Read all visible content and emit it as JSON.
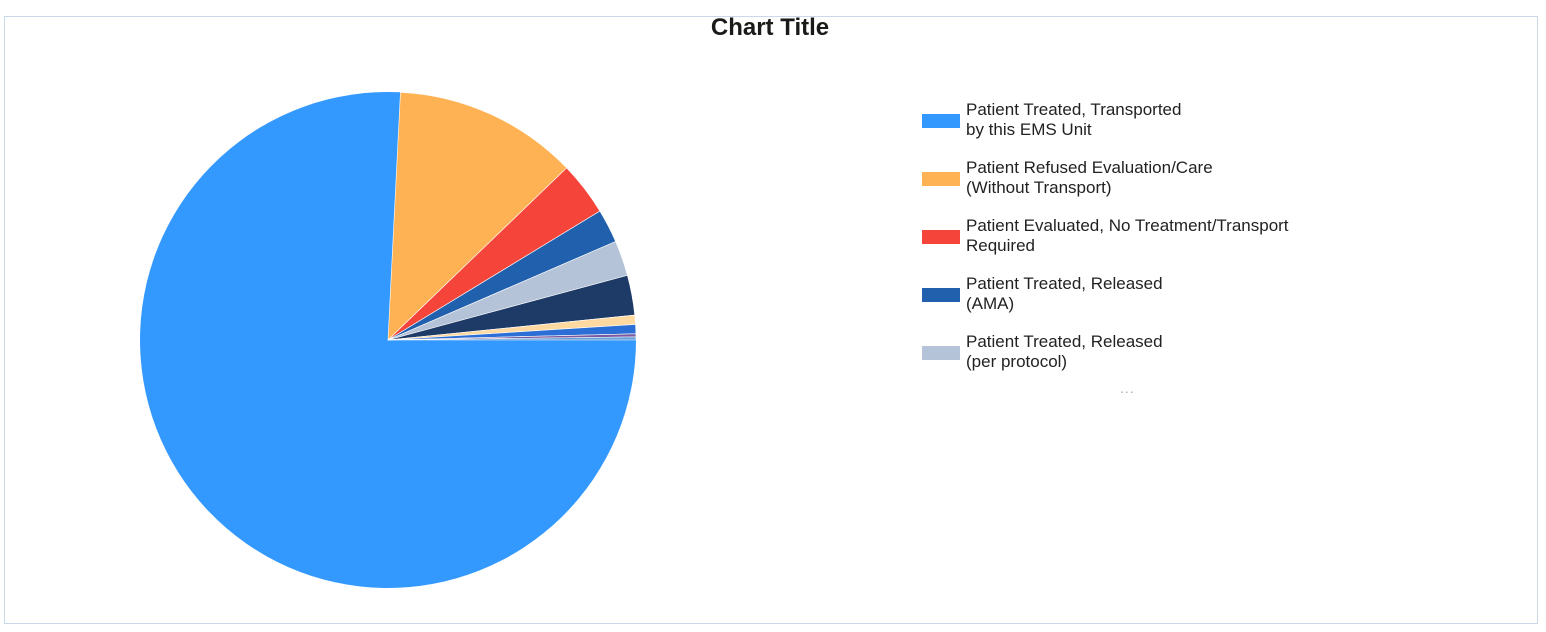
{
  "chart_data": {
    "type": "pie",
    "title": "Chart Title",
    "legend_position": "right",
    "more_indicator": "...",
    "slices": [
      {
        "label": "Patient Treated, Transported by this EMS Unit",
        "value": 75.8,
        "color": "#3399ff",
        "legend_lines": [
          "Patient Treated, Transported",
          "by this EMS Unit"
        ]
      },
      {
        "label": "Patient Refused Evaluation/Care (Without Transport)",
        "value": 12.0,
        "color": "#ffb254",
        "legend_lines": [
          "Patient Refused Evaluation/Care",
          "(Without Transport)"
        ]
      },
      {
        "label": "Patient Evaluated, No Treatment/Transport Required",
        "value": 3.5,
        "color": "#f5453a",
        "legend_lines": [
          "Patient Evaluated, No Treatment/Transport",
          "Required"
        ]
      },
      {
        "label": "Patient Treated, Released (AMA)",
        "value": 2.2,
        "color": "#2160ad",
        "legend_lines": [
          "Patient Treated, Released",
          "(AMA)"
        ]
      },
      {
        "label": "Patient Treated, Released (per protocol)",
        "value": 2.3,
        "color": "#b5c3d8",
        "legend_lines": [
          "Patient Treated, Released",
          "(per protocol)"
        ]
      },
      {
        "label": "",
        "value": 2.6,
        "color": "#1e3a66"
      },
      {
        "label": "",
        "value": 0.6,
        "color": "#ffd9a0"
      },
      {
        "label": "",
        "value": 0.6,
        "color": "#2b6fd6"
      },
      {
        "label": "",
        "value": 0.2,
        "color": "#7a5aa0"
      },
      {
        "label": "",
        "value": 0.2,
        "color": "#6aa0d8"
      }
    ]
  }
}
